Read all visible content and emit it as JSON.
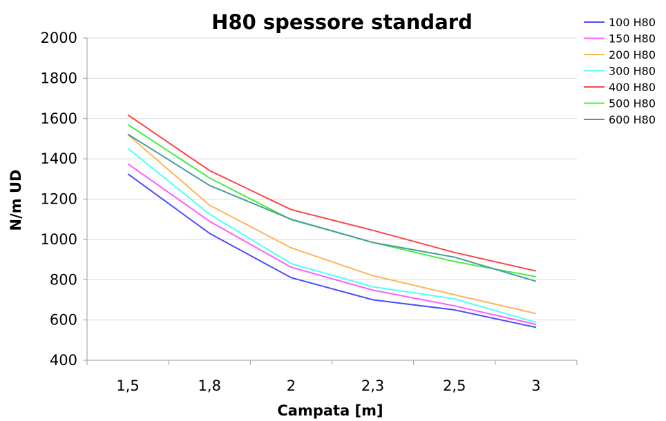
{
  "chart_data": {
    "type": "line",
    "title": "H80 spessore standard",
    "xlabel": "Campata [m]",
    "ylabel": "N/m UD",
    "categories": [
      "1,5",
      "1,8",
      "2",
      "2,3",
      "2,5",
      "3"
    ],
    "ylim": [
      400,
      2000
    ],
    "yticks": [
      400,
      600,
      800,
      1000,
      1200,
      1400,
      1600,
      1800,
      2000
    ],
    "grid": true,
    "legend_position": "right",
    "series": [
      {
        "name": "100 H80",
        "color": "#4b4bff",
        "values": [
          1325,
          1030,
          810,
          700,
          650,
          563
        ]
      },
      {
        "name": "150 H80",
        "color": "#ff5cff",
        "values": [
          1375,
          1090,
          862,
          748,
          670,
          578
        ]
      },
      {
        "name": "200 H80",
        "color": "#ffb454",
        "values": [
          1520,
          1170,
          958,
          820,
          725,
          632
        ]
      },
      {
        "name": "300 H80",
        "color": "#4dffff",
        "values": [
          1452,
          1125,
          880,
          765,
          705,
          588
        ]
      },
      {
        "name": "400 H80",
        "color": "#ff4444",
        "values": [
          1618,
          1342,
          1148,
          1045,
          935,
          843
        ]
      },
      {
        "name": "500 H80",
        "color": "#44ee44",
        "values": [
          1570,
          1305,
          1098,
          985,
          890,
          815
        ]
      },
      {
        "name": "600 H80",
        "color": "#4a9a9a",
        "values": [
          1522,
          1268,
          1100,
          985,
          912,
          792
        ]
      }
    ]
  }
}
